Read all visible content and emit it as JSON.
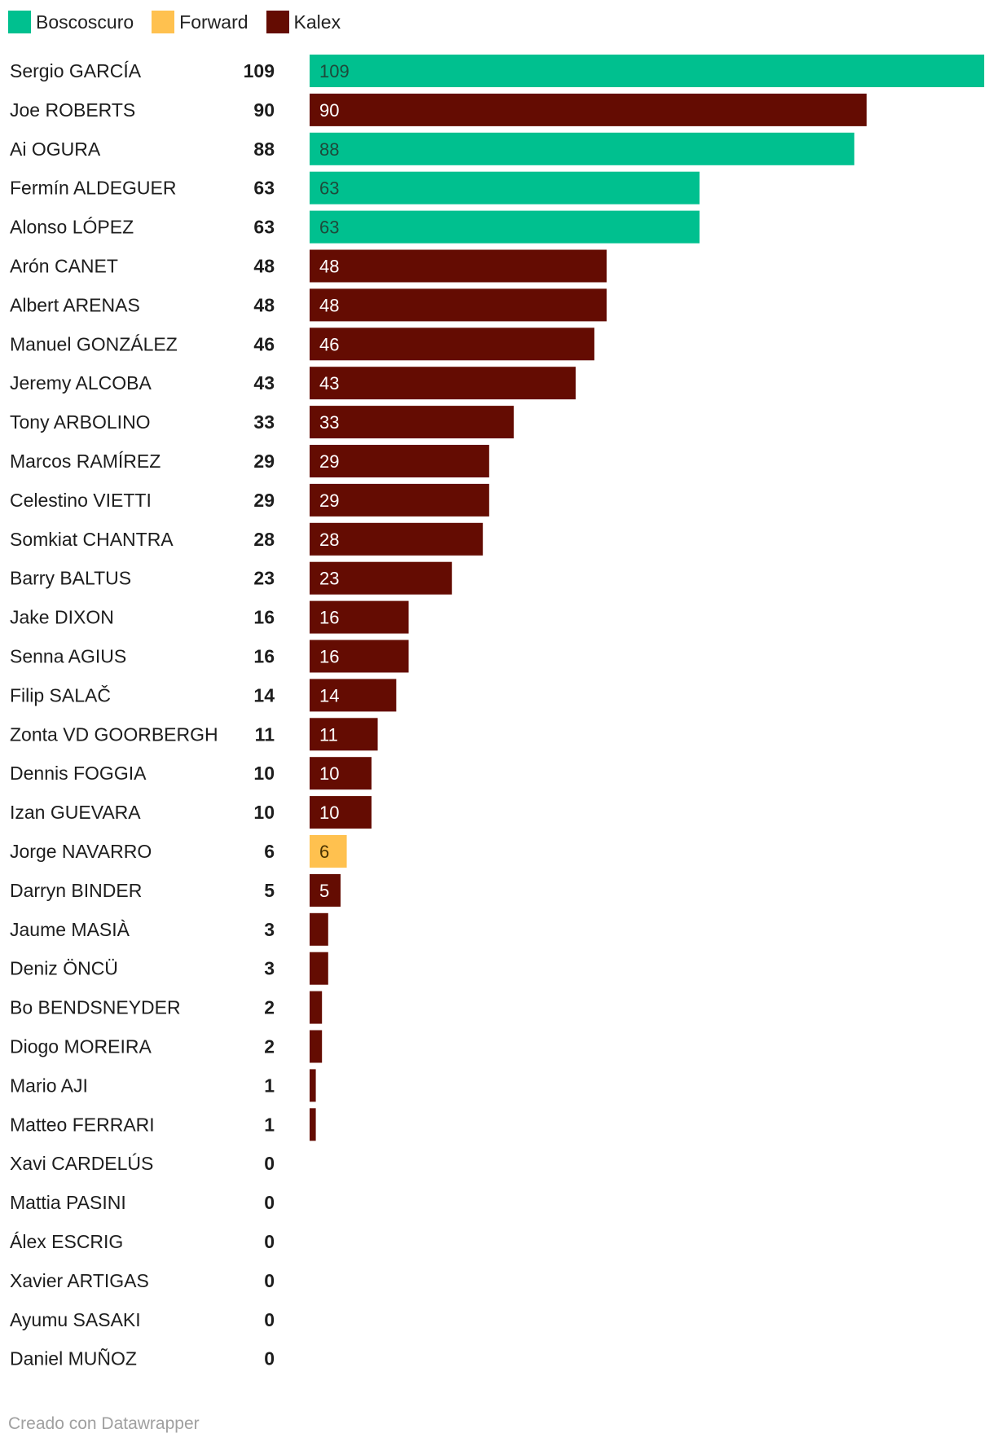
{
  "chart_data": {
    "type": "bar",
    "orientation": "horizontal",
    "legend": [
      {
        "name": "Boscoscuro",
        "color": "#00c08f"
      },
      {
        "name": "Forward",
        "color": "#ffc14f"
      },
      {
        "name": "Kalex",
        "color": "#640c02"
      }
    ],
    "legend_placement": "top-left",
    "xlim": [
      0,
      109
    ],
    "grid": false,
    "rows": [
      {
        "name": "Sergio GARCÍA",
        "value": 109,
        "team": "Boscoscuro"
      },
      {
        "name": "Joe ROBERTS",
        "value": 90,
        "team": "Kalex"
      },
      {
        "name": "Ai OGURA",
        "value": 88,
        "team": "Boscoscuro"
      },
      {
        "name": "Fermín ALDEGUER",
        "value": 63,
        "team": "Boscoscuro"
      },
      {
        "name": "Alonso LÓPEZ",
        "value": 63,
        "team": "Boscoscuro"
      },
      {
        "name": "Arón CANET",
        "value": 48,
        "team": "Kalex"
      },
      {
        "name": "Albert ARENAS",
        "value": 48,
        "team": "Kalex"
      },
      {
        "name": "Manuel GONZÁLEZ",
        "value": 46,
        "team": "Kalex"
      },
      {
        "name": "Jeremy ALCOBA",
        "value": 43,
        "team": "Kalex"
      },
      {
        "name": "Tony ARBOLINO",
        "value": 33,
        "team": "Kalex"
      },
      {
        "name": "Marcos RAMÍREZ",
        "value": 29,
        "team": "Kalex"
      },
      {
        "name": "Celestino VIETTI",
        "value": 29,
        "team": "Kalex"
      },
      {
        "name": "Somkiat CHANTRA",
        "value": 28,
        "team": "Kalex"
      },
      {
        "name": "Barry BALTUS",
        "value": 23,
        "team": "Kalex"
      },
      {
        "name": "Jake DIXON",
        "value": 16,
        "team": "Kalex"
      },
      {
        "name": "Senna AGIUS",
        "value": 16,
        "team": "Kalex"
      },
      {
        "name": "Filip SALAČ",
        "value": 14,
        "team": "Kalex"
      },
      {
        "name": "Zonta VD GOORBERGH",
        "value": 11,
        "team": "Kalex"
      },
      {
        "name": "Dennis FOGGIA",
        "value": 10,
        "team": "Kalex"
      },
      {
        "name": "Izan GUEVARA",
        "value": 10,
        "team": "Kalex"
      },
      {
        "name": "Jorge NAVARRO",
        "value": 6,
        "team": "Forward"
      },
      {
        "name": "Darryn BINDER",
        "value": 5,
        "team": "Kalex"
      },
      {
        "name": "Jaume MASIÀ",
        "value": 3,
        "team": "Kalex"
      },
      {
        "name": "Deniz ÖNCÜ",
        "value": 3,
        "team": "Kalex"
      },
      {
        "name": "Bo BENDSNEYDER",
        "value": 2,
        "team": "Kalex"
      },
      {
        "name": "Diogo MOREIRA",
        "value": 2,
        "team": "Kalex"
      },
      {
        "name": "Mario AJI",
        "value": 1,
        "team": "Kalex"
      },
      {
        "name": "Matteo FERRARI",
        "value": 1,
        "team": "Kalex"
      },
      {
        "name": "Xavi CARDELÚS",
        "value": 0,
        "team": "Kalex"
      },
      {
        "name": "Mattia PASINI",
        "value": 0,
        "team": "Kalex"
      },
      {
        "name": "Álex ESCRIG",
        "value": 0,
        "team": "Kalex"
      },
      {
        "name": "Xavier ARTIGAS",
        "value": 0,
        "team": "Kalex"
      },
      {
        "name": "Ayumu SASAKI",
        "value": 0,
        "team": "Kalex"
      },
      {
        "name": "Daniel MUÑOZ",
        "value": 0,
        "team": "Kalex"
      }
    ]
  },
  "footer": {
    "credit": "Creado con Datawrapper"
  }
}
